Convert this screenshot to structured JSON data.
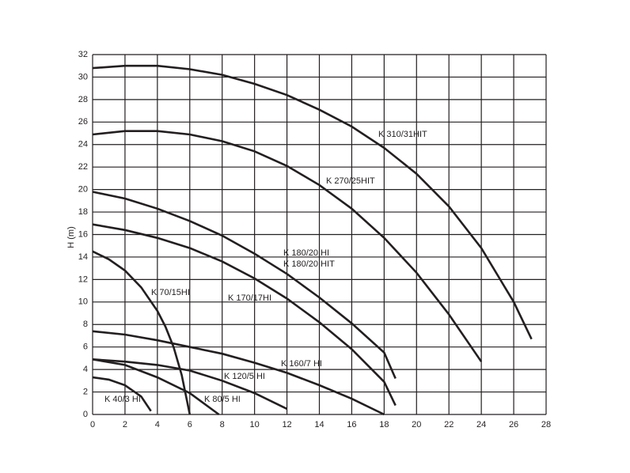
{
  "chart_data": {
    "type": "line",
    "ylabel": "H (m)",
    "xlim": [
      0,
      28
    ],
    "xticks": [
      0,
      2,
      4,
      6,
      8,
      10,
      12,
      14,
      16,
      18,
      20,
      22,
      24,
      26,
      28
    ],
    "ylim": [
      0,
      32
    ],
    "yticks": [
      0,
      2,
      4,
      6,
      8,
      10,
      12,
      14,
      16,
      18,
      20,
      22,
      24,
      26,
      28,
      30,
      32
    ],
    "grid": true,
    "color": "#231f20",
    "series": [
      {
        "name": "K 310/31HIT",
        "x": [
          0,
          2,
          4,
          6,
          8,
          10,
          12,
          14,
          16,
          18,
          20,
          22,
          24,
          26,
          27.1
        ],
        "values": [
          30.8,
          31.0,
          31.0,
          30.7,
          30.2,
          29.4,
          28.4,
          27.1,
          25.6,
          23.7,
          21.4,
          18.5,
          14.8,
          10.0,
          6.7
        ]
      },
      {
        "name": "K 270/25HIT",
        "x": [
          0,
          2,
          4,
          6,
          8,
          10,
          12,
          14,
          16,
          18,
          20,
          22,
          24
        ],
        "values": [
          24.9,
          25.2,
          25.2,
          24.9,
          24.3,
          23.4,
          22.1,
          20.4,
          18.3,
          15.7,
          12.6,
          8.9,
          4.7
        ]
      },
      {
        "name": "K 180/20 HI",
        "x": [
          0,
          2,
          4,
          6,
          8,
          10,
          12,
          14,
          16,
          18,
          18.7
        ],
        "values": [
          19.8,
          19.2,
          18.3,
          17.2,
          15.9,
          14.3,
          12.5,
          10.4,
          8.1,
          5.5,
          3.2
        ]
      },
      {
        "name": "K 170/17HI",
        "x": [
          0,
          2,
          4,
          6,
          8,
          10,
          12,
          14,
          16,
          18,
          18.7
        ],
        "values": [
          16.9,
          16.4,
          15.7,
          14.8,
          13.6,
          12.1,
          10.3,
          8.2,
          5.8,
          2.9,
          0.8
        ]
      },
      {
        "name": "K 70/15HI",
        "x": [
          0,
          1,
          2,
          3,
          4,
          4.5,
          5,
          5.5,
          6
        ],
        "values": [
          14.5,
          13.8,
          12.8,
          11.3,
          9.2,
          7.8,
          6.0,
          3.5,
          0
        ]
      },
      {
        "name": "K 160/7 HI",
        "x": [
          0,
          2,
          4,
          6,
          8,
          10,
          12,
          14,
          16,
          18
        ],
        "values": [
          7.4,
          7.1,
          6.6,
          6.0,
          5.4,
          4.6,
          3.7,
          2.6,
          1.4,
          0
        ]
      },
      {
        "name": "K 120/5 HI",
        "x": [
          0,
          2,
          4,
          6,
          8,
          10,
          12
        ],
        "values": [
          4.9,
          4.7,
          4.4,
          3.9,
          3.0,
          1.9,
          0.5
        ]
      },
      {
        "name": "K 80/5 HI",
        "x": [
          0,
          2,
          4,
          6,
          7.8
        ],
        "values": [
          4.9,
          4.4,
          3.3,
          1.9,
          0
        ]
      },
      {
        "name": "K 40/3 HI",
        "x": [
          0,
          1,
          2,
          3,
          3.6
        ],
        "values": [
          3.3,
          3.1,
          2.6,
          1.6,
          0.3
        ]
      }
    ],
    "annotations": [
      {
        "text": "K 180/20 HIT"
      }
    ]
  }
}
